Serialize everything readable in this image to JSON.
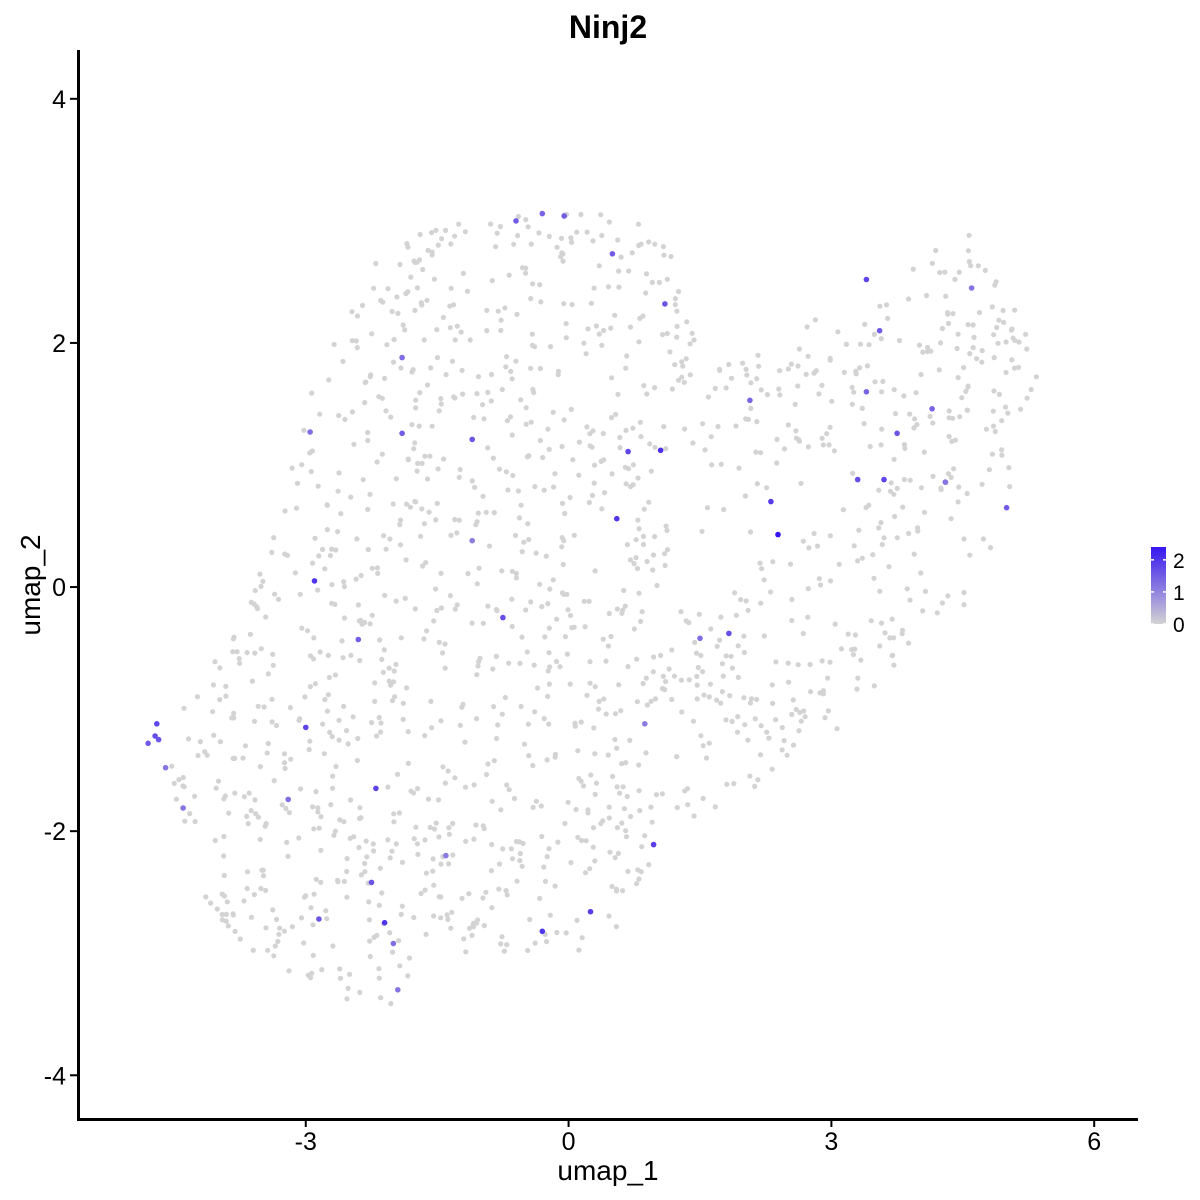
{
  "chart_data": {
    "type": "scatter",
    "title": "Ninj2",
    "xlabel": "umap_1",
    "ylabel": "umap_2",
    "xlim": [
      -5.6,
      6.5
    ],
    "ylim": [
      -4.35,
      4.4
    ],
    "x_ticks": [
      -3,
      0,
      3,
      6
    ],
    "y_ticks": [
      -4,
      -2,
      0,
      2,
      4
    ],
    "x_tick_labels": [
      "-3",
      "0",
      "3",
      "6"
    ],
    "y_tick_labels": [
      "-4",
      "-2",
      "0",
      "2",
      "4"
    ],
    "grid": false,
    "color_scale": {
      "low_color": "#d3d3d3",
      "high_color": "#3616f0",
      "min": 0,
      "max": 2.4,
      "legend_ticks": [
        0,
        1,
        2
      ],
      "legend_labels": [
        "0",
        "1",
        "2"
      ],
      "legend_position": "right"
    },
    "highlighted_points": [
      {
        "x": -4.7,
        "y": -1.12,
        "value": 1.8
      },
      {
        "x": -4.72,
        "y": -1.22,
        "value": 1.7
      },
      {
        "x": -4.68,
        "y": -1.25,
        "value": 1.6
      },
      {
        "x": -4.8,
        "y": -1.28,
        "value": 1.5
      },
      {
        "x": -4.6,
        "y": -1.48,
        "value": 1.2
      },
      {
        "x": -4.4,
        "y": -1.81,
        "value": 1.2
      },
      {
        "x": -2.9,
        "y": 0.05,
        "value": 2.0
      },
      {
        "x": -3.0,
        "y": -1.15,
        "value": 1.8
      },
      {
        "x": -2.1,
        "y": -2.75,
        "value": 2.0
      },
      {
        "x": -0.3,
        "y": -2.82,
        "value": 2.0
      },
      {
        "x": -0.75,
        "y": -0.25,
        "value": 1.7
      },
      {
        "x": 0.55,
        "y": 0.56,
        "value": 2.0
      },
      {
        "x": 1.05,
        "y": 1.12,
        "value": 2.1
      },
      {
        "x": 0.68,
        "y": 1.11,
        "value": 1.8
      },
      {
        "x": 0.5,
        "y": 2.73,
        "value": 1.5
      },
      {
        "x": 1.1,
        "y": 2.32,
        "value": 1.6
      },
      {
        "x": 0.25,
        "y": -2.66,
        "value": 1.9
      },
      {
        "x": 0.97,
        "y": -2.11,
        "value": 1.9
      },
      {
        "x": 2.31,
        "y": 0.7,
        "value": 1.9
      },
      {
        "x": 2.39,
        "y": 0.43,
        "value": 2.4
      },
      {
        "x": 1.83,
        "y": -0.38,
        "value": 1.7
      },
      {
        "x": 3.4,
        "y": 2.52,
        "value": 1.8
      },
      {
        "x": 3.55,
        "y": 2.1,
        "value": 1.5
      },
      {
        "x": 3.3,
        "y": 0.88,
        "value": 1.7
      },
      {
        "x": 3.6,
        "y": 0.88,
        "value": 1.8
      },
      {
        "x": 3.75,
        "y": 1.26,
        "value": 1.6
      },
      {
        "x": 4.15,
        "y": 1.46,
        "value": 1.4
      },
      {
        "x": 5.0,
        "y": 0.65,
        "value": 1.5
      },
      {
        "x": -2.2,
        "y": -1.65,
        "value": 1.8
      },
      {
        "x": -2.25,
        "y": -2.42,
        "value": 1.6
      },
      {
        "x": -2.85,
        "y": -2.72,
        "value": 1.6
      },
      {
        "x": -2.4,
        "y": -0.43,
        "value": 1.5
      },
      {
        "x": -1.9,
        "y": 1.26,
        "value": 1.5
      },
      {
        "x": -1.1,
        "y": 1.21,
        "value": 1.6
      },
      {
        "x": -0.6,
        "y": 3.0,
        "value": 1.5
      },
      {
        "x": -0.3,
        "y": 3.06,
        "value": 1.4
      },
      {
        "x": -0.05,
        "y": 3.04,
        "value": 1.5
      },
      {
        "x": -1.9,
        "y": 1.88,
        "value": 1.3
      },
      {
        "x": -2.95,
        "y": 1.27,
        "value": 1.3
      },
      {
        "x": -2.0,
        "y": -2.92,
        "value": 1.3
      },
      {
        "x": -1.95,
        "y": -3.3,
        "value": 1.2
      },
      {
        "x": -3.2,
        "y": -1.74,
        "value": 1.3
      },
      {
        "x": 2.07,
        "y": 1.53,
        "value": 1.4
      },
      {
        "x": 1.5,
        "y": -0.42,
        "value": 1.3
      },
      {
        "x": 3.4,
        "y": 1.6,
        "value": 1.4
      },
      {
        "x": 4.3,
        "y": 0.86,
        "value": 1.2
      },
      {
        "x": 4.6,
        "y": 2.45,
        "value": 1.2
      },
      {
        "x": -1.1,
        "y": 0.38,
        "value": 1.1
      },
      {
        "x": 0.87,
        "y": -1.12,
        "value": 1.1
      },
      {
        "x": -1.4,
        "y": -2.2,
        "value": 1.1
      }
    ]
  }
}
